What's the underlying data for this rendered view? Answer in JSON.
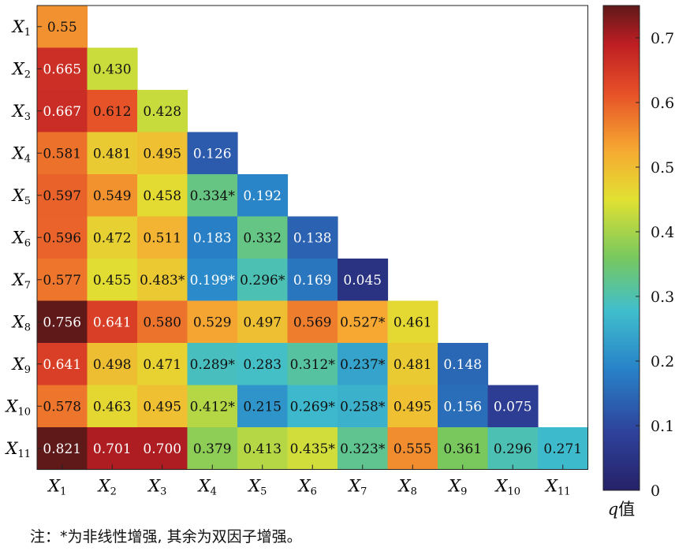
{
  "chart_data": {
    "type": "heatmap",
    "row_labels": [
      "X1",
      "X2",
      "X3",
      "X4",
      "X5",
      "X6",
      "X7",
      "X8",
      "X9",
      "X10",
      "X11"
    ],
    "col_labels": [
      "X1",
      "X2",
      "X3",
      "X4",
      "X5",
      "X6",
      "X7",
      "X8",
      "X9",
      "X10",
      "X11"
    ],
    "cells": [
      [
        "0.55"
      ],
      [
        "0.665",
        "0.430"
      ],
      [
        "0.667",
        "0.612",
        "0.428"
      ],
      [
        "0.581",
        "0.481",
        "0.495",
        "0.126"
      ],
      [
        "0.597",
        "0.549",
        "0.458",
        "0.334*",
        "0.192"
      ],
      [
        "0.596",
        "0.472",
        "0.511",
        "0.183",
        "0.332",
        "0.138"
      ],
      [
        "0.577",
        "0.455",
        "0.483*",
        "0.199*",
        "0.296*",
        "0.169",
        "0.045"
      ],
      [
        "0.756",
        "0.641",
        "0.580",
        "0.529",
        "0.497",
        "0.569",
        "0.527*",
        "0.461"
      ],
      [
        "0.641",
        "0.498",
        "0.471",
        "0.289*",
        "0.283",
        "0.312*",
        "0.237*",
        "0.481",
        "0.148"
      ],
      [
        "0.578",
        "0.463",
        "0.495",
        "0.412*",
        "0.215",
        "0.269*",
        "0.258*",
        "0.495",
        "0.156",
        "0.075"
      ],
      [
        "0.821",
        "0.701",
        "0.700",
        "0.379",
        "0.413",
        "0.435*",
        "0.323*",
        "0.555",
        "0.361",
        "0.296",
        "0.271"
      ]
    ],
    "colorbar": {
      "label_var": "q",
      "label_suffix": "值",
      "range": [
        0,
        0.75
      ],
      "ticks": [
        "0",
        "0.1",
        "0.2",
        "0.3",
        "0.4",
        "0.5",
        "0.6",
        "0.7"
      ]
    },
    "colormap": "jet-like",
    "note": "注：*为非线性增强, 其余为双因子增强。"
  }
}
